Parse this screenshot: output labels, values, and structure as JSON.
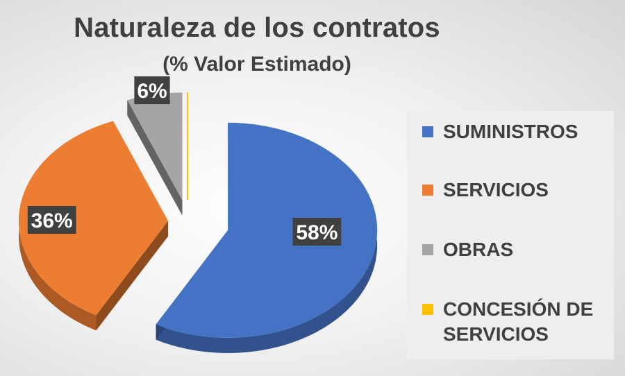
{
  "chart_data": {
    "type": "pie",
    "title": "Naturaleza de los contratos",
    "subtitle": "(% Valor Estimado)",
    "categories": [
      "SUMINISTROS",
      "SERVICIOS",
      "OBRAS",
      "CONCESIÓN DE SERVICIOS"
    ],
    "values": [
      58,
      36,
      6,
      0
    ],
    "data_labels": [
      "58%",
      "36%",
      "6%",
      ""
    ],
    "colors": [
      "#4472c4",
      "#ed7d31",
      "#a5a5a5",
      "#ffc000"
    ],
    "legend_position": "right",
    "style": "3d-exploded"
  }
}
